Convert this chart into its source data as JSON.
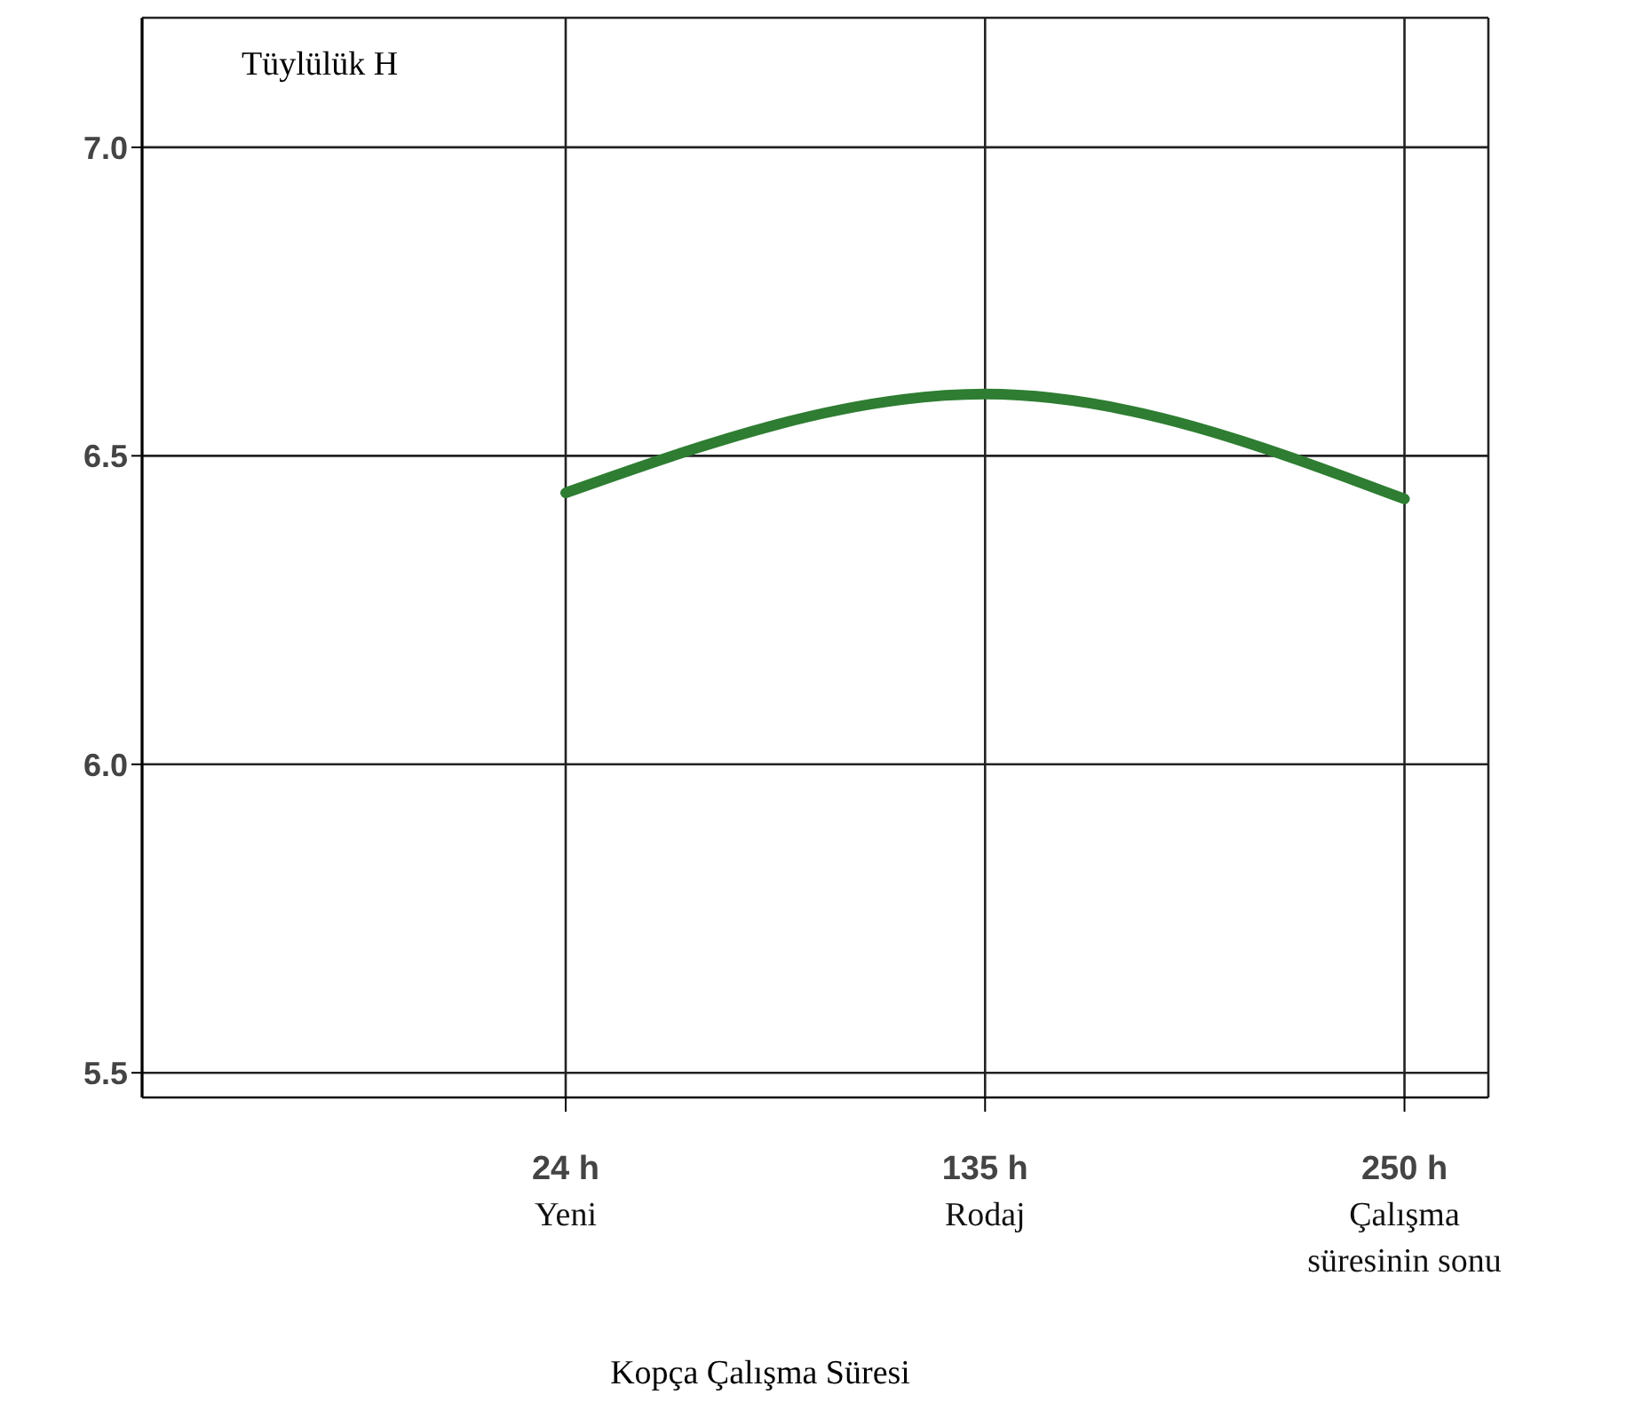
{
  "chart_data": {
    "type": "line",
    "ylabel": "Tüylülük H",
    "xlabel": "Kopça Çalışma Süresi",
    "categories": [
      "24 h\nYeni",
      "135 h\nRodaj",
      "250 h\nÇalışma\nsüresinin sonu"
    ],
    "series": [
      {
        "color": "#2e7d32",
        "values": [
          6.44,
          6.6,
          6.43
        ]
      }
    ],
    "ylim": [
      5.46,
      7.21
    ],
    "yticks": [
      {
        "value": 5.5,
        "label": "5.5"
      },
      {
        "value": 6,
        "label": "6.0"
      },
      {
        "value": 6.5,
        "label": "6.5"
      },
      {
        "value": 7,
        "label": "7.0"
      }
    ],
    "grid": true,
    "legend": false,
    "marker": "none",
    "line_style": "solid"
  }
}
